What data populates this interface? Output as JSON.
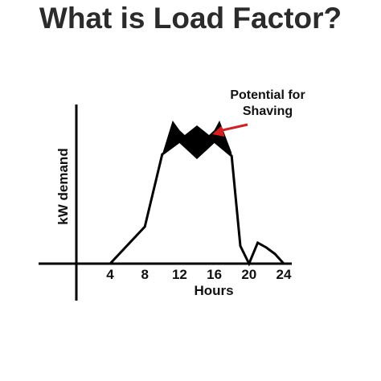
{
  "title": "What is Load Factor?",
  "chart_data": {
    "type": "line",
    "title": "What is Load Factor?",
    "xlabel": "Hours",
    "ylabel": "kW demand",
    "xticks": [
      4,
      8,
      12,
      16,
      20,
      24
    ],
    "xlim": [
      -4.5,
      25.5
    ],
    "ylim": [
      -25,
      100
    ],
    "grid": false,
    "legend": "none",
    "series": [
      {
        "x": [
          4,
          8,
          10,
          12,
          14,
          16,
          18,
          19,
          20,
          21,
          22,
          23,
          24
        ],
        "y": [
          0,
          23,
          68,
          76,
          66,
          76,
          67,
          11,
          0,
          13,
          10,
          6,
          0
        ]
      }
    ],
    "shaded_region": {
      "upper": {
        "x": [
          10,
          11.2,
          12,
          12.6,
          14,
          15.4,
          16,
          16.6,
          18
        ],
        "y": [
          68,
          89,
          83,
          80,
          86,
          80,
          83,
          89,
          69
        ]
      },
      "lower": {
        "x": [
          10,
          11,
          12,
          13,
          14,
          15,
          16,
          17,
          18
        ],
        "y": [
          68,
          72,
          76,
          71,
          66,
          71,
          76,
          72,
          67
        ]
      }
    },
    "annotations": [
      {
        "text_lines": [
          "Potential for",
          "Shaving"
        ],
        "arrow_color": "#d42020",
        "points_to": {
          "x": 15.4,
          "y": 80
        }
      }
    ],
    "colors": {
      "line": "#000000",
      "shading": "#000000",
      "arrow": "#d42020",
      "title": "#2b2b2b"
    }
  }
}
